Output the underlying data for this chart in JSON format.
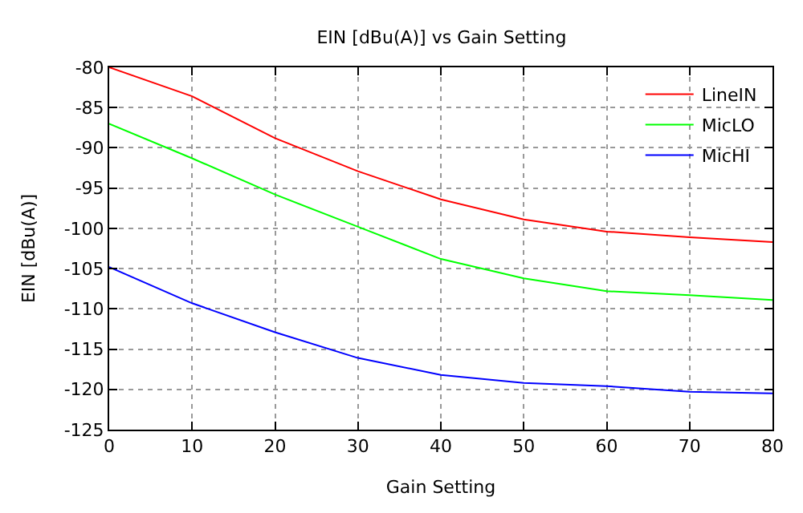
{
  "chart_data": {
    "type": "line",
    "title": "EIN [dBu(A)] vs Gain Setting",
    "xlabel": "Gain Setting",
    "ylabel": "EIN [dBu(A)]",
    "x": [
      0,
      10,
      20,
      30,
      40,
      50,
      60,
      70,
      80
    ],
    "series": [
      {
        "name": "LineIN",
        "color": "#ff0000",
        "values": [
          -80,
          -83.6,
          -88.8,
          -92.9,
          -96.4,
          -98.9,
          -100.4,
          -101.1,
          -101.7
        ]
      },
      {
        "name": "MicLO",
        "color": "#00ff00",
        "values": [
          -87,
          -91.3,
          -95.8,
          -99.8,
          -103.8,
          -106.2,
          -107.8,
          -108.3,
          -108.9
        ]
      },
      {
        "name": "MicHI",
        "color": "#0000ff",
        "values": [
          -104.8,
          -109.3,
          -112.9,
          -116.1,
          -118.2,
          -119.2,
          -119.6,
          -120.3,
          -120.5
        ]
      }
    ],
    "xlim": [
      0,
      80
    ],
    "xticks": [
      0,
      10,
      20,
      30,
      40,
      50,
      60,
      70,
      80
    ],
    "ylim": [
      -125,
      -80
    ],
    "yticks": [
      -125,
      -120,
      -115,
      -110,
      -105,
      -100,
      -95,
      -90,
      -85,
      -80
    ],
    "grid": true,
    "legend": "top right",
    "marker": "none",
    "line_style": "solid"
  }
}
